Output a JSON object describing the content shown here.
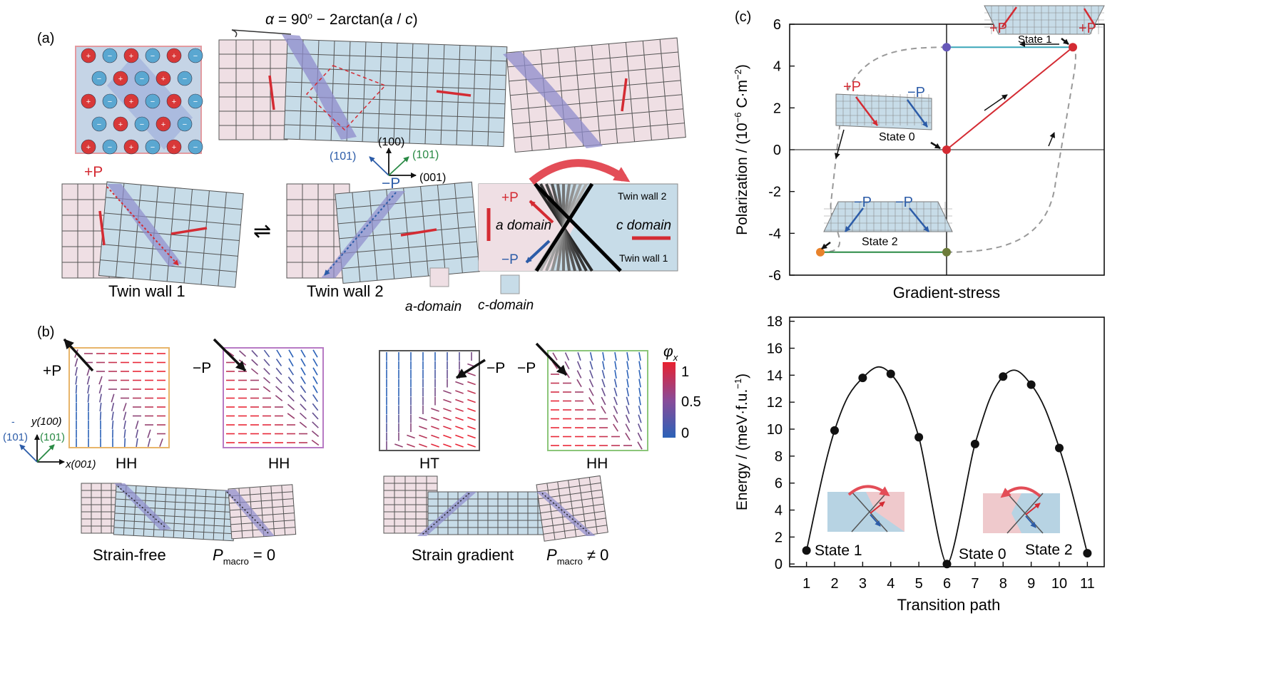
{
  "colors": {
    "a_domain": "#efdfe4",
    "c_domain": "#c7dce8",
    "wall": "#8f8ccc",
    "grid": "#555555",
    "red": "#d42b33",
    "blue": "#2c5ca8",
    "green": "#2a8a45",
    "teal": "#3aa6b9",
    "orange": "#e8822b",
    "olive": "#6d7c3a",
    "purple": "#6658b8"
  },
  "panel_a": {
    "label": "(a)",
    "formula": {
      "alpha": "α",
      "eq": " = 90",
      "deg": "o",
      "minus": " − 2arctan(",
      "a": "a",
      "slash": " / ",
      "c": "c",
      "close": ")"
    },
    "c_label": "c",
    "a_label": "a",
    "axes": {
      "y": "(100)",
      "blue": "(101)",
      "green": "(101)",
      "x": "(001)"
    },
    "plus_p": "+P",
    "minus_p": "−P",
    "twin_wall_1": "Twin wall 1",
    "twin_wall_2": "Twin wall 2",
    "inset": {
      "plus_p": "+P",
      "minus_p": "−P",
      "a_domain": "a domain",
      "c_domain": "c domain",
      "tw2": "Twin wall 2",
      "tw1": "Twin wall 1"
    },
    "legend": {
      "a": "a-domain",
      "c": "c-domain"
    },
    "switch_symbol": "⇌"
  },
  "panel_b": {
    "label": "(b)",
    "maps": [
      {
        "p": "+P",
        "type": "HH"
      },
      {
        "p": "−P",
        "type": "HH"
      },
      {
        "p": "−P",
        "type": "HT"
      },
      {
        "p": "−P",
        "type": "HH"
      }
    ],
    "axes": {
      "y": "y(100)",
      "blue": "(101)",
      "bar": "-",
      "green": "(101)",
      "x": "x(001)"
    },
    "colorbar": {
      "title": "φ",
      "sub": "x",
      "ticks": [
        "1",
        "0.5",
        "0"
      ]
    },
    "captions": {
      "left": "Strain-free",
      "left_p": "P",
      "left_sub": "macro",
      "left_eq": " = 0",
      "right": "Strain gradient",
      "right_p": "P",
      "right_sub": "macro",
      "right_eq": " ≠ 0"
    }
  },
  "panel_c": {
    "label": "(c)",
    "top_chart_labels": {
      "ylabel": "Polarization / (10",
      "ylabel_exp": "−6",
      "ylabel_tail": " C·m",
      "ylabel_exp2": "−2",
      "ylabel_close": ")",
      "xlabel": "Gradient-stress",
      "state0": "State 0",
      "state1": "State 1",
      "state2": "State 2",
      "plus_p": "+P",
      "minus_p": "−P"
    },
    "bottom_chart_labels": {
      "ylabel": "Energy / (meV·f.u.",
      "ylabel_exp": "−1",
      "ylabel_close": ")",
      "xlabel": "Transition path",
      "state1": "State 1",
      "state0": "State 0",
      "state2": "State 2"
    }
  },
  "chart_data": [
    {
      "type": "line",
      "xlabel": "Gradient-stress",
      "ylabel": "Polarization / (10−6 C·m−2)",
      "ylim": [
        -6,
        6
      ],
      "yticks": [
        6,
        4,
        2,
        0,
        -2,
        -4,
        -6
      ],
      "series": [
        {
          "name": "State 0 → State 1",
          "x": [
            0,
            1
          ],
          "y": [
            0,
            4.9
          ]
        },
        {
          "name": "State 1 plateau",
          "x": [
            0,
            1
          ],
          "y": [
            4.9,
            4.9
          ]
        },
        {
          "name": "State 2 plateau",
          "x": [
            -1,
            0
          ],
          "y": [
            -4.9,
            -4.9
          ]
        }
      ],
      "points": [
        {
          "label": "State 0",
          "y": 0
        },
        {
          "label": "State 1",
          "y": 4.9
        },
        {
          "label": "State 2",
          "y": -4.9
        }
      ]
    },
    {
      "type": "line",
      "xlabel": "Transition path",
      "ylabel": "Energy / (meV·f.u.−1)",
      "ylim": [
        0,
        18
      ],
      "x": [
        1,
        2,
        3,
        4,
        5,
        6,
        7,
        8,
        9,
        10,
        11
      ],
      "y": [
        1.0,
        9.9,
        13.8,
        14.1,
        9.4,
        0.0,
        8.9,
        13.9,
        13.3,
        8.6,
        0.8
      ],
      "xticks": [
        1,
        2,
        3,
        4,
        5,
        6,
        7,
        8,
        9,
        10,
        11
      ],
      "yticks": [
        0,
        2,
        4,
        6,
        8,
        10,
        12,
        14,
        16,
        18
      ]
    }
  ]
}
